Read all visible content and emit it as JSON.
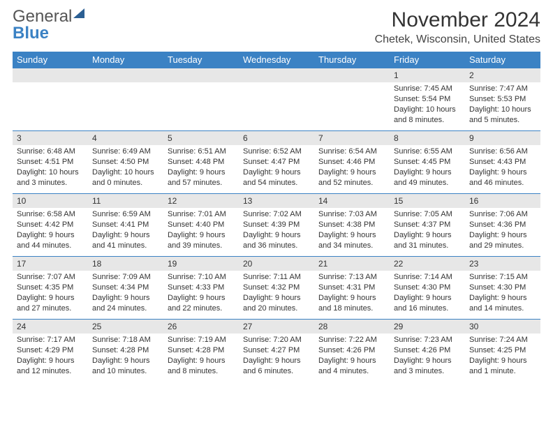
{
  "logo": {
    "line1": "General",
    "line2": "Blue"
  },
  "title": "November 2024",
  "location": "Chetek, Wisconsin, United States",
  "colors": {
    "header_bg": "#3b82c4",
    "header_text": "#ffffff",
    "daynum_bg": "#e7e7e7",
    "rule": "#3b82c4",
    "text": "#333333"
  },
  "weekdays": [
    "Sunday",
    "Monday",
    "Tuesday",
    "Wednesday",
    "Thursday",
    "Friday",
    "Saturday"
  ],
  "weeks": [
    [
      null,
      null,
      null,
      null,
      null,
      {
        "n": "1",
        "sunrise": "Sunrise: 7:45 AM",
        "sunset": "Sunset: 5:54 PM",
        "daylight": "Daylight: 10 hours and 8 minutes."
      },
      {
        "n": "2",
        "sunrise": "Sunrise: 7:47 AM",
        "sunset": "Sunset: 5:53 PM",
        "daylight": "Daylight: 10 hours and 5 minutes."
      }
    ],
    [
      {
        "n": "3",
        "sunrise": "Sunrise: 6:48 AM",
        "sunset": "Sunset: 4:51 PM",
        "daylight": "Daylight: 10 hours and 3 minutes."
      },
      {
        "n": "4",
        "sunrise": "Sunrise: 6:49 AM",
        "sunset": "Sunset: 4:50 PM",
        "daylight": "Daylight: 10 hours and 0 minutes."
      },
      {
        "n": "5",
        "sunrise": "Sunrise: 6:51 AM",
        "sunset": "Sunset: 4:48 PM",
        "daylight": "Daylight: 9 hours and 57 minutes."
      },
      {
        "n": "6",
        "sunrise": "Sunrise: 6:52 AM",
        "sunset": "Sunset: 4:47 PM",
        "daylight": "Daylight: 9 hours and 54 minutes."
      },
      {
        "n": "7",
        "sunrise": "Sunrise: 6:54 AM",
        "sunset": "Sunset: 4:46 PM",
        "daylight": "Daylight: 9 hours and 52 minutes."
      },
      {
        "n": "8",
        "sunrise": "Sunrise: 6:55 AM",
        "sunset": "Sunset: 4:45 PM",
        "daylight": "Daylight: 9 hours and 49 minutes."
      },
      {
        "n": "9",
        "sunrise": "Sunrise: 6:56 AM",
        "sunset": "Sunset: 4:43 PM",
        "daylight": "Daylight: 9 hours and 46 minutes."
      }
    ],
    [
      {
        "n": "10",
        "sunrise": "Sunrise: 6:58 AM",
        "sunset": "Sunset: 4:42 PM",
        "daylight": "Daylight: 9 hours and 44 minutes."
      },
      {
        "n": "11",
        "sunrise": "Sunrise: 6:59 AM",
        "sunset": "Sunset: 4:41 PM",
        "daylight": "Daylight: 9 hours and 41 minutes."
      },
      {
        "n": "12",
        "sunrise": "Sunrise: 7:01 AM",
        "sunset": "Sunset: 4:40 PM",
        "daylight": "Daylight: 9 hours and 39 minutes."
      },
      {
        "n": "13",
        "sunrise": "Sunrise: 7:02 AM",
        "sunset": "Sunset: 4:39 PM",
        "daylight": "Daylight: 9 hours and 36 minutes."
      },
      {
        "n": "14",
        "sunrise": "Sunrise: 7:03 AM",
        "sunset": "Sunset: 4:38 PM",
        "daylight": "Daylight: 9 hours and 34 minutes."
      },
      {
        "n": "15",
        "sunrise": "Sunrise: 7:05 AM",
        "sunset": "Sunset: 4:37 PM",
        "daylight": "Daylight: 9 hours and 31 minutes."
      },
      {
        "n": "16",
        "sunrise": "Sunrise: 7:06 AM",
        "sunset": "Sunset: 4:36 PM",
        "daylight": "Daylight: 9 hours and 29 minutes."
      }
    ],
    [
      {
        "n": "17",
        "sunrise": "Sunrise: 7:07 AM",
        "sunset": "Sunset: 4:35 PM",
        "daylight": "Daylight: 9 hours and 27 minutes."
      },
      {
        "n": "18",
        "sunrise": "Sunrise: 7:09 AM",
        "sunset": "Sunset: 4:34 PM",
        "daylight": "Daylight: 9 hours and 24 minutes."
      },
      {
        "n": "19",
        "sunrise": "Sunrise: 7:10 AM",
        "sunset": "Sunset: 4:33 PM",
        "daylight": "Daylight: 9 hours and 22 minutes."
      },
      {
        "n": "20",
        "sunrise": "Sunrise: 7:11 AM",
        "sunset": "Sunset: 4:32 PM",
        "daylight": "Daylight: 9 hours and 20 minutes."
      },
      {
        "n": "21",
        "sunrise": "Sunrise: 7:13 AM",
        "sunset": "Sunset: 4:31 PM",
        "daylight": "Daylight: 9 hours and 18 minutes."
      },
      {
        "n": "22",
        "sunrise": "Sunrise: 7:14 AM",
        "sunset": "Sunset: 4:30 PM",
        "daylight": "Daylight: 9 hours and 16 minutes."
      },
      {
        "n": "23",
        "sunrise": "Sunrise: 7:15 AM",
        "sunset": "Sunset: 4:30 PM",
        "daylight": "Daylight: 9 hours and 14 minutes."
      }
    ],
    [
      {
        "n": "24",
        "sunrise": "Sunrise: 7:17 AM",
        "sunset": "Sunset: 4:29 PM",
        "daylight": "Daylight: 9 hours and 12 minutes."
      },
      {
        "n": "25",
        "sunrise": "Sunrise: 7:18 AM",
        "sunset": "Sunset: 4:28 PM",
        "daylight": "Daylight: 9 hours and 10 minutes."
      },
      {
        "n": "26",
        "sunrise": "Sunrise: 7:19 AM",
        "sunset": "Sunset: 4:28 PM",
        "daylight": "Daylight: 9 hours and 8 minutes."
      },
      {
        "n": "27",
        "sunrise": "Sunrise: 7:20 AM",
        "sunset": "Sunset: 4:27 PM",
        "daylight": "Daylight: 9 hours and 6 minutes."
      },
      {
        "n": "28",
        "sunrise": "Sunrise: 7:22 AM",
        "sunset": "Sunset: 4:26 PM",
        "daylight": "Daylight: 9 hours and 4 minutes."
      },
      {
        "n": "29",
        "sunrise": "Sunrise: 7:23 AM",
        "sunset": "Sunset: 4:26 PM",
        "daylight": "Daylight: 9 hours and 3 minutes."
      },
      {
        "n": "30",
        "sunrise": "Sunrise: 7:24 AM",
        "sunset": "Sunset: 4:25 PM",
        "daylight": "Daylight: 9 hours and 1 minute."
      }
    ]
  ]
}
